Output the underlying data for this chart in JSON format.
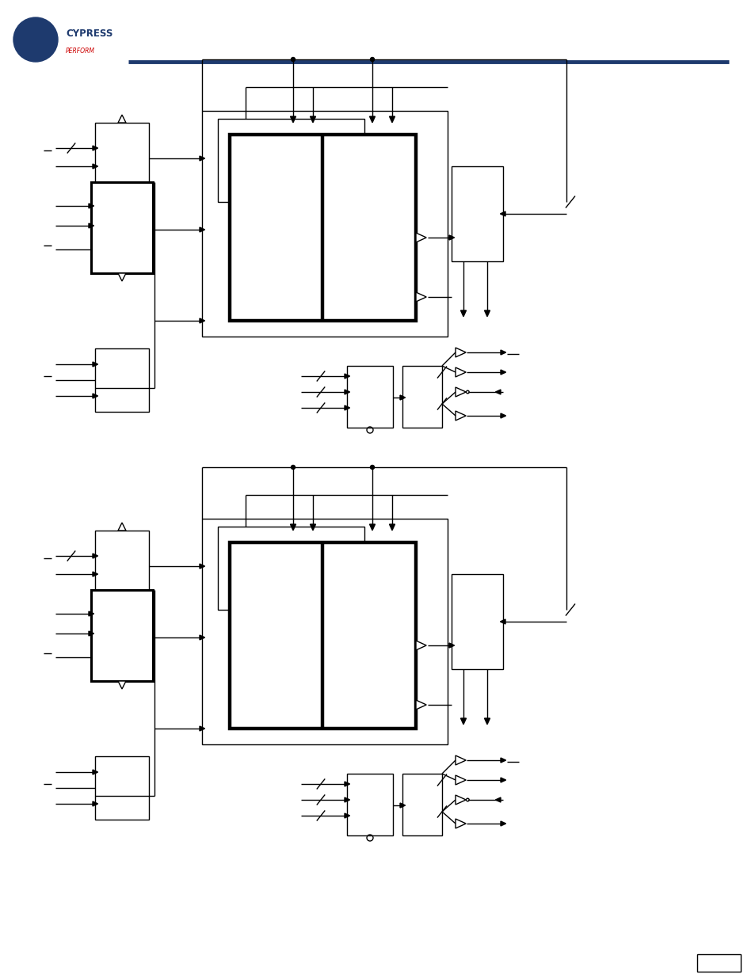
{
  "bg_color": "#ffffff",
  "line_color": "#000000",
  "thick_lw": 3.2,
  "thin_lw": 1.0,
  "header_bar_color": "#1e3a6e",
  "cypress_blue": "#1e3a6e",
  "cypress_red": "#cc0000"
}
